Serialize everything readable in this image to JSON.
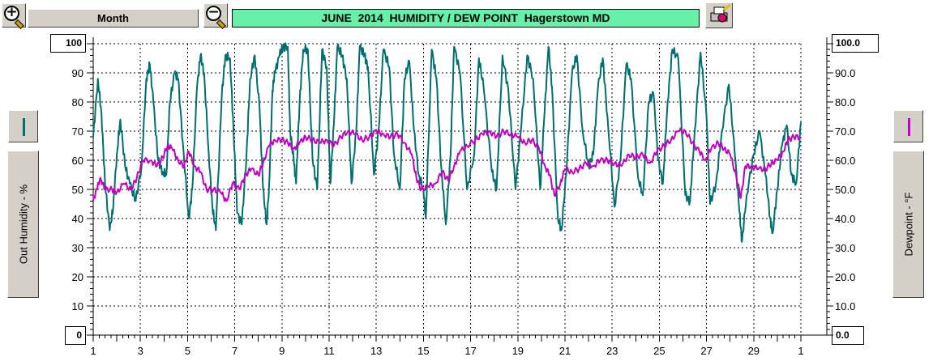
{
  "toolbar": {
    "zoom_in_icon": "zoom-in-magnifier-plus",
    "zoom_out_icon": "zoom-out-magnifier-minus",
    "period_label": "Month",
    "print_icon": "printer-icon",
    "title": "JUNE  2014  HUMIDITY / DEW POINT  Hagerstown MD",
    "title_bg": "#66f0a8"
  },
  "left_axis_box": {
    "top": "100",
    "bottom": "0"
  },
  "right_axis_box": {
    "top": "100.0",
    "bottom": "0.0"
  },
  "left_legend": {
    "label": "Out Humidity - %",
    "color": "#006e6e"
  },
  "right_legend": {
    "label": "Dewpoint - °F",
    "color": "#c000c0"
  },
  "chart_data": {
    "type": "line",
    "title": "JUNE  2014  HUMIDITY / DEW POINT  Hagerstown MD",
    "grid": true,
    "x_range": [
      1,
      31
    ],
    "x_ticks": [
      "1",
      "3",
      "5",
      "7",
      "9",
      "11",
      "13",
      "15",
      "17",
      "19",
      "21",
      "23",
      "25",
      "27",
      "29",
      "1"
    ],
    "left_axis": {
      "label": "Out Humidity - %",
      "range": [
        0,
        100
      ],
      "ticks": [
        "100",
        "90",
        "80",
        "70",
        "60",
        "50",
        "40",
        "30",
        "20",
        "10",
        "0"
      ]
    },
    "right_axis": {
      "label": "Dewpoint - °F",
      "range": [
        0,
        100
      ],
      "ticks": [
        "100.0",
        "90.0",
        "80.0",
        "70.0",
        "60.0",
        "50.0",
        "40.0",
        "30.0",
        "20.0",
        "10.0",
        "0.0"
      ]
    },
    "series": [
      {
        "name": "Out Humidity - %",
        "axis": "left",
        "color": "#006e6e",
        "points": [
          [
            1.0,
            68
          ],
          [
            1.2,
            88
          ],
          [
            1.35,
            76
          ],
          [
            1.5,
            52
          ],
          [
            1.7,
            36
          ],
          [
            1.85,
            44
          ],
          [
            2.0,
            62
          ],
          [
            2.15,
            74
          ],
          [
            2.35,
            58
          ],
          [
            2.55,
            52
          ],
          [
            2.8,
            46
          ],
          [
            3.05,
            58
          ],
          [
            3.25,
            88
          ],
          [
            3.4,
            93
          ],
          [
            3.55,
            80
          ],
          [
            3.75,
            60
          ],
          [
            3.95,
            56
          ],
          [
            4.1,
            55
          ],
          [
            4.25,
            80
          ],
          [
            4.45,
            90
          ],
          [
            4.6,
            88
          ],
          [
            4.8,
            66
          ],
          [
            5.05,
            40
          ],
          [
            5.2,
            50
          ],
          [
            5.4,
            85
          ],
          [
            5.55,
            96
          ],
          [
            5.7,
            90
          ],
          [
            5.9,
            62
          ],
          [
            6.05,
            44
          ],
          [
            6.2,
            36
          ],
          [
            6.45,
            82
          ],
          [
            6.6,
            96
          ],
          [
            6.8,
            95
          ],
          [
            6.95,
            70
          ],
          [
            7.1,
            42
          ],
          [
            7.3,
            38
          ],
          [
            7.5,
            62
          ],
          [
            7.65,
            88
          ],
          [
            7.85,
            96
          ],
          [
            8.05,
            78
          ],
          [
            8.2,
            50
          ],
          [
            8.35,
            38
          ],
          [
            8.45,
            50
          ],
          [
            8.6,
            84
          ],
          [
            8.7,
            90
          ],
          [
            8.9,
            96
          ],
          [
            9.05,
            99
          ],
          [
            9.25,
            99
          ],
          [
            9.35,
            70
          ],
          [
            9.5,
            60
          ],
          [
            9.6,
            52
          ],
          [
            9.75,
            80
          ],
          [
            9.9,
            98
          ],
          [
            10.1,
            98
          ],
          [
            10.3,
            60
          ],
          [
            10.5,
            50
          ],
          [
            10.7,
            98
          ],
          [
            10.9,
            92
          ],
          [
            11.05,
            52
          ],
          [
            11.2,
            72
          ],
          [
            11.35,
            99
          ],
          [
            11.55,
            96
          ],
          [
            11.75,
            88
          ],
          [
            11.95,
            52
          ],
          [
            12.15,
            70
          ],
          [
            12.3,
            99
          ],
          [
            12.5,
            96
          ],
          [
            12.65,
            92
          ],
          [
            12.9,
            55
          ],
          [
            13.1,
            70
          ],
          [
            13.3,
            98
          ],
          [
            13.55,
            92
          ],
          [
            13.75,
            62
          ],
          [
            14.0,
            50
          ],
          [
            14.2,
            88
          ],
          [
            14.4,
            94
          ],
          [
            14.6,
            70
          ],
          [
            14.8,
            55
          ],
          [
            15.0,
            50
          ],
          [
            15.1,
            40
          ],
          [
            15.35,
            98
          ],
          [
            15.55,
            88
          ],
          [
            15.75,
            58
          ],
          [
            15.95,
            38
          ],
          [
            16.15,
            62
          ],
          [
            16.3,
            99
          ],
          [
            16.55,
            90
          ],
          [
            16.85,
            50
          ],
          [
            17.15,
            62
          ],
          [
            17.35,
            95
          ],
          [
            17.55,
            85
          ],
          [
            17.9,
            56
          ],
          [
            18.1,
            50
          ],
          [
            18.35,
            96
          ],
          [
            18.6,
            84
          ],
          [
            18.9,
            50
          ],
          [
            19.15,
            72
          ],
          [
            19.4,
            96
          ],
          [
            19.65,
            88
          ],
          [
            19.95,
            50
          ],
          [
            20.1,
            72
          ],
          [
            20.3,
            99
          ],
          [
            20.45,
            85
          ],
          [
            20.7,
            40
          ],
          [
            20.85,
            36
          ],
          [
            21.05,
            55
          ],
          [
            21.3,
            90
          ],
          [
            21.5,
            96
          ],
          [
            21.75,
            70
          ],
          [
            22.0,
            58
          ],
          [
            22.2,
            62
          ],
          [
            22.4,
            85
          ],
          [
            22.6,
            95
          ],
          [
            22.8,
            75
          ],
          [
            23.1,
            44
          ],
          [
            23.35,
            60
          ],
          [
            23.6,
            93
          ],
          [
            23.8,
            88
          ],
          [
            24.1,
            54
          ],
          [
            24.3,
            48
          ],
          [
            24.55,
            80
          ],
          [
            24.75,
            83
          ],
          [
            24.95,
            60
          ],
          [
            25.15,
            52
          ],
          [
            25.35,
            80
          ],
          [
            25.55,
            98
          ],
          [
            25.8,
            95
          ],
          [
            26.1,
            48
          ],
          [
            26.3,
            46
          ],
          [
            26.5,
            70
          ],
          [
            26.75,
            97
          ],
          [
            27.0,
            75
          ],
          [
            27.15,
            45
          ],
          [
            27.4,
            52
          ],
          [
            27.65,
            70
          ],
          [
            27.95,
            86
          ],
          [
            28.2,
            62
          ],
          [
            28.4,
            42
          ],
          [
            28.5,
            32
          ],
          [
            28.7,
            48
          ],
          [
            29.0,
            62
          ],
          [
            29.25,
            70
          ],
          [
            29.5,
            55
          ],
          [
            29.7,
            40
          ],
          [
            29.8,
            35
          ],
          [
            30.0,
            50
          ],
          [
            30.2,
            65
          ],
          [
            30.4,
            72
          ],
          [
            30.6,
            55
          ],
          [
            30.8,
            52
          ],
          [
            31.0,
            73
          ]
        ]
      },
      {
        "name": "Dewpoint - °F",
        "axis": "right",
        "color": "#c000c0",
        "points": [
          [
            1.0,
            46
          ],
          [
            1.15,
            50
          ],
          [
            1.3,
            54
          ],
          [
            1.5,
            50
          ],
          [
            1.8,
            50
          ],
          [
            2.0,
            49
          ],
          [
            2.3,
            52
          ],
          [
            2.6,
            50
          ],
          [
            2.85,
            54
          ],
          [
            3.1,
            60
          ],
          [
            3.45,
            60
          ],
          [
            3.7,
            58
          ],
          [
            3.95,
            61
          ],
          [
            4.15,
            65
          ],
          [
            4.35,
            64
          ],
          [
            4.6,
            60
          ],
          [
            4.85,
            58
          ],
          [
            5.05,
            63
          ],
          [
            5.3,
            58
          ],
          [
            5.55,
            56
          ],
          [
            5.8,
            50
          ],
          [
            6.1,
            50
          ],
          [
            6.4,
            49
          ],
          [
            6.65,
            46
          ],
          [
            6.9,
            52
          ],
          [
            7.2,
            50
          ],
          [
            7.45,
            55
          ],
          [
            7.7,
            57
          ],
          [
            8.0,
            55
          ],
          [
            8.2,
            59
          ],
          [
            8.45,
            65
          ],
          [
            8.7,
            67
          ],
          [
            9.0,
            67
          ],
          [
            9.25,
            66
          ],
          [
            9.5,
            64
          ],
          [
            9.75,
            66
          ],
          [
            10.0,
            68
          ],
          [
            10.3,
            67
          ],
          [
            10.6,
            66
          ],
          [
            10.9,
            67
          ],
          [
            11.2,
            65
          ],
          [
            11.5,
            68
          ],
          [
            11.8,
            70
          ],
          [
            12.1,
            69
          ],
          [
            12.4,
            67
          ],
          [
            12.7,
            68
          ],
          [
            13.0,
            70
          ],
          [
            13.3,
            69
          ],
          [
            13.6,
            68
          ],
          [
            13.9,
            69
          ],
          [
            14.2,
            66
          ],
          [
            14.5,
            62
          ],
          [
            14.7,
            54
          ],
          [
            14.9,
            50
          ],
          [
            15.2,
            51
          ],
          [
            15.5,
            52
          ],
          [
            15.8,
            56
          ],
          [
            16.05,
            53
          ],
          [
            16.3,
            58
          ],
          [
            16.55,
            63
          ],
          [
            16.85,
            65
          ],
          [
            17.2,
            67
          ],
          [
            17.5,
            69
          ],
          [
            17.8,
            70
          ],
          [
            18.1,
            68
          ],
          [
            18.4,
            70
          ],
          [
            18.7,
            69
          ],
          [
            19.0,
            68
          ],
          [
            19.3,
            66
          ],
          [
            19.6,
            67
          ],
          [
            19.9,
            64
          ],
          [
            20.15,
            58
          ],
          [
            20.35,
            55
          ],
          [
            20.55,
            48
          ],
          [
            20.8,
            52
          ],
          [
            21.0,
            57
          ],
          [
            21.3,
            56
          ],
          [
            21.6,
            57
          ],
          [
            21.9,
            59
          ],
          [
            22.2,
            58
          ],
          [
            22.5,
            60
          ],
          [
            22.8,
            60
          ],
          [
            23.1,
            59
          ],
          [
            23.4,
            58
          ],
          [
            23.7,
            62
          ],
          [
            24.0,
            61
          ],
          [
            24.3,
            62
          ],
          [
            24.6,
            59
          ],
          [
            24.9,
            63
          ],
          [
            25.2,
            65
          ],
          [
            25.5,
            67
          ],
          [
            25.8,
            70
          ],
          [
            26.1,
            70
          ],
          [
            26.4,
            66
          ],
          [
            26.7,
            63
          ],
          [
            26.95,
            60
          ],
          [
            27.2,
            64
          ],
          [
            27.5,
            66
          ],
          [
            27.75,
            64
          ],
          [
            28.0,
            62
          ],
          [
            28.25,
            55
          ],
          [
            28.45,
            47
          ],
          [
            28.65,
            58
          ],
          [
            28.9,
            58
          ],
          [
            29.2,
            57
          ],
          [
            29.5,
            57
          ],
          [
            29.75,
            59
          ],
          [
            30.0,
            60
          ],
          [
            30.25,
            63
          ],
          [
            30.45,
            67
          ],
          [
            30.7,
            68
          ],
          [
            31.0,
            68
          ]
        ]
      }
    ]
  }
}
